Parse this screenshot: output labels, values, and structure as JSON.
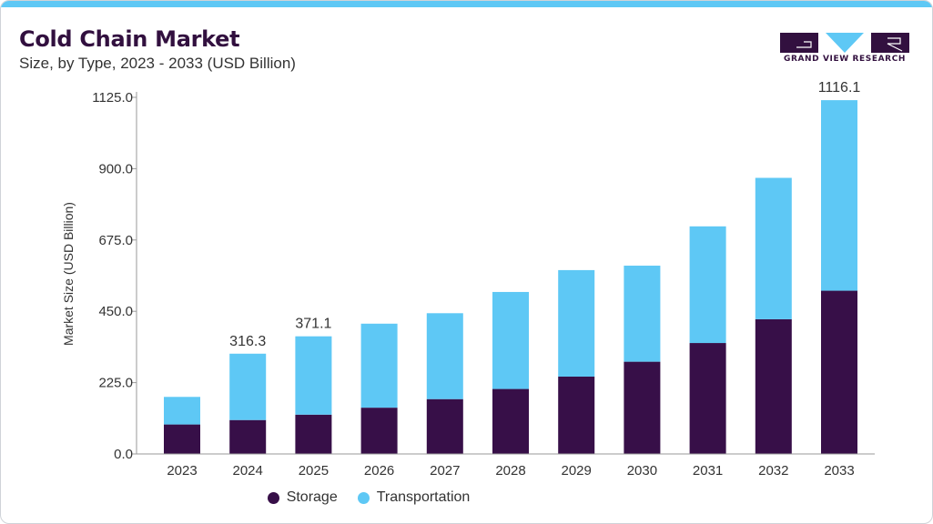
{
  "header": {
    "title": "Cold Chain Market",
    "subtitle": "Size, by Type, 2023 - 2033 (USD Billion)"
  },
  "brand": {
    "name": "GRAND VIEW RESEARCH",
    "color": "#32103f",
    "accent": "#5ec8f5"
  },
  "chart_data": {
    "type": "bar",
    "stacked": true,
    "categories": [
      "2023",
      "2024",
      "2025",
      "2026",
      "2027",
      "2028",
      "2029",
      "2030",
      "2031",
      "2032",
      "2033"
    ],
    "series": [
      {
        "name": "Storage",
        "color": "#370f48",
        "values": [
          93,
          107,
          124,
          146,
          173,
          205,
          244,
          291,
          350,
          425,
          515
        ]
      },
      {
        "name": "Transportation",
        "color": "#5ec8f5",
        "values": [
          87,
          209.3,
          247.1,
          265,
          271,
          306,
          336,
          303,
          368,
          446,
          601.1
        ]
      }
    ],
    "totals_labels": {
      "2024": "316.3",
      "2025": "371.1",
      "2033": "1116.1"
    },
    "ylabel": "Market Size (USD Billion)",
    "xlabel": "",
    "ylim": [
      0,
      1125
    ],
    "yticks": [
      "0.0",
      "225.0",
      "450.0",
      "675.0",
      "900.0",
      "1125.0"
    ],
    "grid": false,
    "legend_position": "bottom"
  }
}
